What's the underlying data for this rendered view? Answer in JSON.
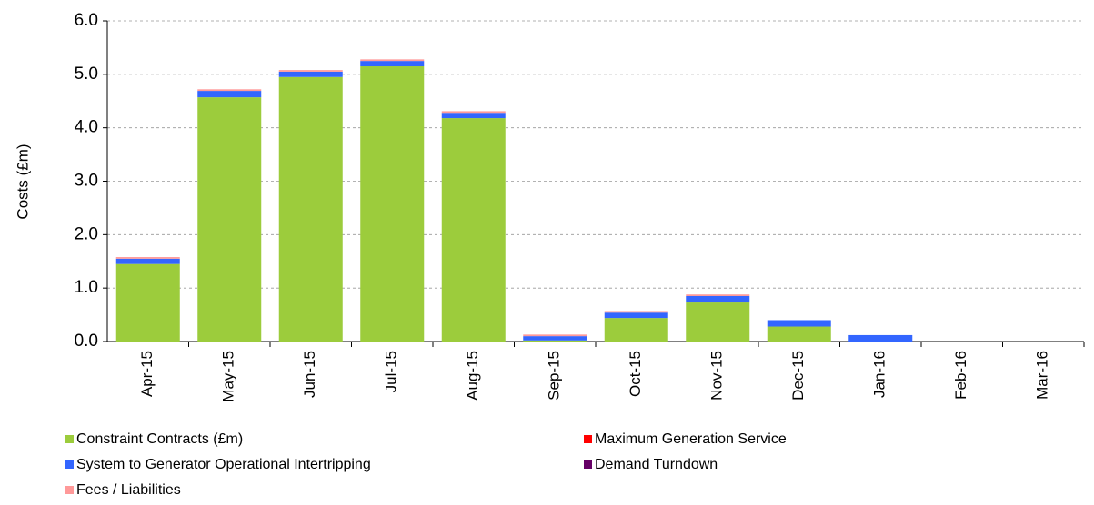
{
  "chart_data": {
    "type": "stacked_bar",
    "y_label": "Costs (£m)",
    "categories": [
      "Apr-15",
      "May-15",
      "Jun-15",
      "Jul-15",
      "Aug-15",
      "Sep-15",
      "Oct-15",
      "Nov-15",
      "Dec-15",
      "Jan-16",
      "Feb-16",
      "Mar-16"
    ],
    "series": [
      {
        "name": "Constraint Contracts (£m)",
        "color": "#9ccc3c",
        "values": [
          1.45,
          4.57,
          4.95,
          5.15,
          4.18,
          0.02,
          0.44,
          0.73,
          0.28,
          0,
          0,
          0
        ]
      },
      {
        "name": "Maximum Generation Service",
        "color": "#ff0000",
        "values": [
          0,
          0,
          0,
          0,
          0,
          0,
          0,
          0,
          0,
          0,
          0,
          0
        ]
      },
      {
        "name": "System to Generator Operational Intertripping",
        "color": "#3366ff",
        "values": [
          0.1,
          0.12,
          0.1,
          0.1,
          0.1,
          0.08,
          0.1,
          0.12,
          0.12,
          0.12,
          0,
          0
        ]
      },
      {
        "name": "Demand Turndown",
        "color": "#660066",
        "values": [
          0,
          0,
          0,
          0,
          0,
          0,
          0,
          0,
          0,
          0,
          0,
          0
        ]
      },
      {
        "name": "Fees / Liabilities",
        "color": "#ff9999",
        "values": [
          0.03,
          0.03,
          0.03,
          0.03,
          0.03,
          0.03,
          0.03,
          0.03,
          0,
          0,
          0,
          0
        ]
      }
    ],
    "ylim": [
      0,
      6
    ],
    "yticks": [
      {
        "value": 0,
        "label": "0.0"
      },
      {
        "value": 1,
        "label": "1.0"
      },
      {
        "value": 2,
        "label": "2.0"
      },
      {
        "value": 3,
        "label": "3.0"
      },
      {
        "value": 4,
        "label": "4.0"
      },
      {
        "value": 5,
        "label": "5.0"
      },
      {
        "value": 6,
        "label": "6.0"
      }
    ],
    "grid": true
  }
}
